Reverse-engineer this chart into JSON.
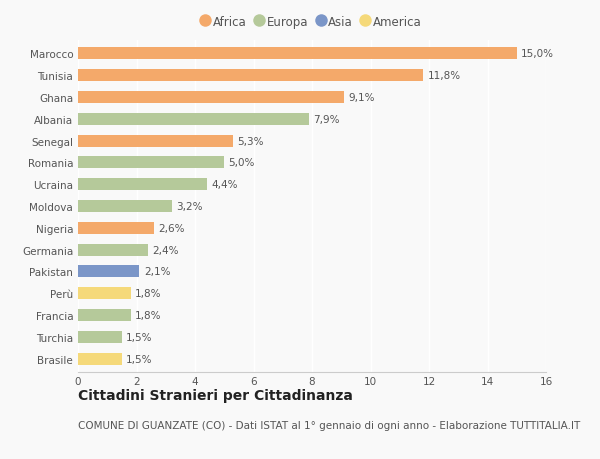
{
  "countries": [
    "Marocco",
    "Tunisia",
    "Ghana",
    "Albania",
    "Senegal",
    "Romania",
    "Ucraina",
    "Moldova",
    "Nigeria",
    "Germania",
    "Pakistan",
    "Perù",
    "Francia",
    "Turchia",
    "Brasile"
  ],
  "values": [
    15.0,
    11.8,
    9.1,
    7.9,
    5.3,
    5.0,
    4.4,
    3.2,
    2.6,
    2.4,
    2.1,
    1.8,
    1.8,
    1.5,
    1.5
  ],
  "labels": [
    "15,0%",
    "11,8%",
    "9,1%",
    "7,9%",
    "5,3%",
    "5,0%",
    "4,4%",
    "3,2%",
    "2,6%",
    "2,4%",
    "2,1%",
    "1,8%",
    "1,8%",
    "1,5%",
    "1,5%"
  ],
  "continents": [
    "Africa",
    "Africa",
    "Africa",
    "Europa",
    "Africa",
    "Europa",
    "Europa",
    "Europa",
    "Africa",
    "Europa",
    "Asia",
    "America",
    "Europa",
    "Europa",
    "America"
  ],
  "colors": {
    "Africa": "#F4A96A",
    "Europa": "#B5C99A",
    "Asia": "#7B96C8",
    "America": "#F5D97A"
  },
  "legend_order": [
    "Africa",
    "Europa",
    "Asia",
    "America"
  ],
  "xlim": [
    0,
    16
  ],
  "xticks": [
    0,
    2,
    4,
    6,
    8,
    10,
    12,
    14,
    16
  ],
  "title": "Cittadini Stranieri per Cittadinanza",
  "subtitle": "COMUNE DI GUANZATE (CO) - Dati ISTAT al 1° gennaio di ogni anno - Elaborazione TUTTITALIA.IT",
  "background_color": "#f9f9f9",
  "bar_height": 0.55,
  "title_fontsize": 10,
  "subtitle_fontsize": 7.5,
  "label_fontsize": 7.5,
  "tick_fontsize": 7.5,
  "legend_fontsize": 8.5
}
